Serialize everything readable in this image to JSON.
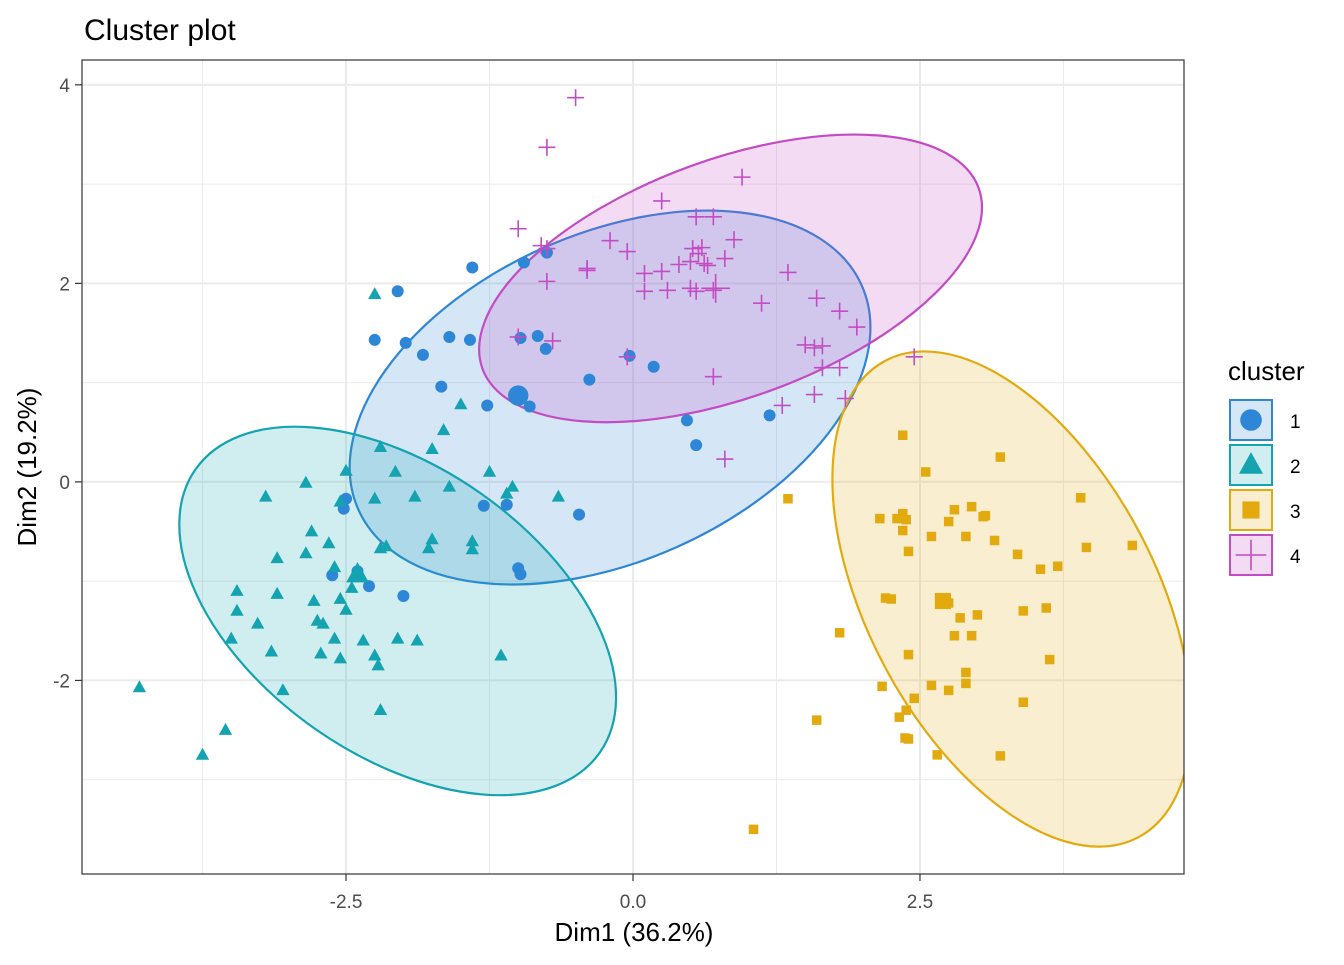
{
  "chart_data": {
    "type": "scatter",
    "title": "Cluster plot",
    "xlabel": "Dim1 (36.2%)",
    "ylabel": "Dim2 (19.2%)",
    "xlim": [
      -4.8,
      4.8
    ],
    "ylim": [
      -3.95,
      4.25
    ],
    "x_ticks": [
      -2.5,
      0.0,
      2.5
    ],
    "x_tick_labels": [
      "-2.5",
      "0.0",
      "2.5"
    ],
    "y_ticks": [
      -2,
      0,
      2,
      4
    ],
    "y_tick_labels": [
      "-2",
      "0",
      "2",
      "4"
    ],
    "grid": true,
    "legend": {
      "title": "cluster",
      "position": "right"
    },
    "series": [
      {
        "name": "1",
        "color": "#2e86d6",
        "shape": "circle",
        "centroid": [
          -1.0,
          0.87
        ],
        "ellipse": {
          "center": [
            -0.2,
            0.85
          ],
          "rx": 2.4,
          "ry": 1.65,
          "angle_deg": -24
        },
        "points": [
          [
            -1.4,
            2.16
          ],
          [
            -0.95,
            2.21
          ],
          [
            -0.75,
            2.31
          ],
          [
            -2.05,
            1.92
          ],
          [
            -2.25,
            1.43
          ],
          [
            -1.98,
            1.4
          ],
          [
            -1.83,
            1.28
          ],
          [
            -1.6,
            1.46
          ],
          [
            -1.42,
            1.43
          ],
          [
            -0.98,
            1.45
          ],
          [
            -0.83,
            1.47
          ],
          [
            -0.76,
            1.34
          ],
          [
            -0.03,
            1.27
          ],
          [
            0.18,
            1.16
          ],
          [
            -0.38,
            1.03
          ],
          [
            -1.67,
            0.96
          ],
          [
            -1.27,
            0.77
          ],
          [
            -0.9,
            0.76
          ],
          [
            0.47,
            0.62
          ],
          [
            0.55,
            0.37
          ],
          [
            1.19,
            0.67
          ],
          [
            -2.5,
            -0.17
          ],
          [
            -2.52,
            -0.27
          ],
          [
            -1.3,
            -0.24
          ],
          [
            -1.1,
            -0.23
          ],
          [
            -0.47,
            -0.33
          ],
          [
            -1.0,
            -0.87
          ],
          [
            -0.98,
            -0.93
          ],
          [
            -2.62,
            -0.94
          ],
          [
            -2.3,
            -1.05
          ],
          [
            -2.0,
            -1.15
          ],
          [
            -2.4,
            -0.9
          ]
        ]
      },
      {
        "name": "2",
        "color": "#14a3b0",
        "shape": "triangle",
        "centroid": [
          -2.4,
          -0.93
        ],
        "ellipse": {
          "center": [
            -2.05,
            -1.3
          ],
          "rx": 2.15,
          "ry": 1.45,
          "angle_deg": 35
        },
        "points": [
          [
            -2.25,
            1.89
          ],
          [
            -1.5,
            0.78
          ],
          [
            -1.65,
            0.52
          ],
          [
            -2.2,
            0.35
          ],
          [
            -1.75,
            0.33
          ],
          [
            -2.07,
            0.1
          ],
          [
            -2.5,
            0.11
          ],
          [
            -2.85,
            -0.01
          ],
          [
            -1.25,
            0.1
          ],
          [
            -1.6,
            -0.05
          ],
          [
            -1.1,
            -0.12
          ],
          [
            -1.05,
            -0.05
          ],
          [
            -0.65,
            -0.15
          ],
          [
            -1.9,
            -0.15
          ],
          [
            -2.25,
            -0.17
          ],
          [
            -2.55,
            -0.2
          ],
          [
            -3.2,
            -0.15
          ],
          [
            -2.8,
            -0.5
          ],
          [
            -2.65,
            -0.62
          ],
          [
            -2.15,
            -0.65
          ],
          [
            -2.2,
            -0.67
          ],
          [
            -1.75,
            -0.58
          ],
          [
            -1.78,
            -0.67
          ],
          [
            -1.4,
            -0.6
          ],
          [
            -1.4,
            -0.68
          ],
          [
            -3.1,
            -0.77
          ],
          [
            -2.85,
            -0.72
          ],
          [
            -2.6,
            -0.86
          ],
          [
            -2.45,
            -1.07
          ],
          [
            -2.55,
            -1.18
          ],
          [
            -2.5,
            -1.29
          ],
          [
            -2.78,
            -1.2
          ],
          [
            -3.45,
            -1.1
          ],
          [
            -3.45,
            -1.3
          ],
          [
            -3.1,
            -1.13
          ],
          [
            -3.5,
            -1.58
          ],
          [
            -3.27,
            -1.43
          ],
          [
            -2.7,
            -1.43
          ],
          [
            -2.75,
            -1.4
          ],
          [
            -2.6,
            -1.58
          ],
          [
            -2.35,
            -1.6
          ],
          [
            -2.05,
            -1.58
          ],
          [
            -1.88,
            -1.6
          ],
          [
            -3.15,
            -1.71
          ],
          [
            -2.72,
            -1.73
          ],
          [
            -2.55,
            -1.78
          ],
          [
            -2.25,
            -1.75
          ],
          [
            -2.22,
            -1.85
          ],
          [
            -1.15,
            -1.75
          ],
          [
            -3.05,
            -2.1
          ],
          [
            -4.3,
            -2.07
          ],
          [
            -2.2,
            -2.3
          ],
          [
            -3.55,
            -2.5
          ],
          [
            -3.75,
            -2.75
          ]
        ]
      },
      {
        "name": "3",
        "color": "#e3aa0f",
        "shape": "square",
        "centroid": [
          2.7,
          -1.2
        ],
        "ellipse": {
          "center": [
            3.3,
            -1.18
          ],
          "rx": 2.35,
          "ry": 1.45,
          "angle_deg": 62
        },
        "points": [
          [
            2.35,
            0.47
          ],
          [
            2.55,
            0.1
          ],
          [
            3.2,
            0.25
          ],
          [
            1.35,
            -0.17
          ],
          [
            2.15,
            -0.37
          ],
          [
            2.3,
            -0.37
          ],
          [
            2.35,
            -0.32
          ],
          [
            2.38,
            -0.38
          ],
          [
            2.35,
            -0.49
          ],
          [
            2.8,
            -0.28
          ],
          [
            2.95,
            -0.25
          ],
          [
            2.75,
            -0.4
          ],
          [
            2.6,
            -0.55
          ],
          [
            2.4,
            -0.7
          ],
          [
            2.9,
            -0.55
          ],
          [
            3.05,
            -0.35
          ],
          [
            3.07,
            -0.34
          ],
          [
            3.15,
            -0.59
          ],
          [
            3.35,
            -0.73
          ],
          [
            3.55,
            -0.88
          ],
          [
            3.7,
            -0.85
          ],
          [
            3.9,
            -0.16
          ],
          [
            3.95,
            -0.66
          ],
          [
            4.35,
            -0.64
          ],
          [
            2.2,
            -1.17
          ],
          [
            2.25,
            -1.18
          ],
          [
            2.7,
            -1.22
          ],
          [
            2.75,
            -1.22
          ],
          [
            2.85,
            -1.37
          ],
          [
            3.0,
            -1.34
          ],
          [
            3.4,
            -1.3
          ],
          [
            3.6,
            -1.27
          ],
          [
            1.8,
            -1.52
          ],
          [
            2.8,
            -1.55
          ],
          [
            2.95,
            -1.55
          ],
          [
            2.4,
            -1.74
          ],
          [
            3.63,
            -1.79
          ],
          [
            2.9,
            -1.92
          ],
          [
            2.9,
            -2.03
          ],
          [
            2.6,
            -2.05
          ],
          [
            2.75,
            -2.1
          ],
          [
            2.17,
            -2.06
          ],
          [
            2.45,
            -2.18
          ],
          [
            2.38,
            -2.3
          ],
          [
            2.32,
            -2.37
          ],
          [
            3.4,
            -2.22
          ],
          [
            1.6,
            -2.4
          ],
          [
            2.37,
            -2.58
          ],
          [
            2.4,
            -2.59
          ],
          [
            2.65,
            -2.75
          ],
          [
            3.2,
            -2.76
          ],
          [
            1.05,
            -3.5
          ]
        ]
      },
      {
        "name": "4",
        "color": "#c34bc3",
        "shape": "cross",
        "centroid": [
          0.72,
          1.95
        ],
        "ellipse": {
          "center": [
            0.85,
            2.05
          ],
          "rx": 2.3,
          "ry": 1.2,
          "angle_deg": -20
        },
        "points": [
          [
            -0.5,
            3.87
          ],
          [
            -0.75,
            3.37
          ],
          [
            0.95,
            3.07
          ],
          [
            0.25,
            2.83
          ],
          [
            0.55,
            2.67
          ],
          [
            0.7,
            2.67
          ],
          [
            -1.0,
            2.55
          ],
          [
            -0.8,
            2.38
          ],
          [
            -0.75,
            2.35
          ],
          [
            -0.2,
            2.43
          ],
          [
            -0.05,
            2.32
          ],
          [
            0.52,
            2.35
          ],
          [
            0.6,
            2.36
          ],
          [
            0.88,
            2.44
          ],
          [
            0.4,
            2.19
          ],
          [
            0.5,
            2.22
          ],
          [
            0.57,
            2.3
          ],
          [
            0.65,
            2.18
          ],
          [
            0.8,
            2.25
          ],
          [
            0.62,
            2.2
          ],
          [
            -0.4,
            2.13
          ],
          [
            -0.4,
            2.15
          ],
          [
            0.1,
            2.1
          ],
          [
            0.25,
            2.12
          ],
          [
            1.35,
            2.11
          ],
          [
            -0.75,
            2.02
          ],
          [
            0.1,
            1.92
          ],
          [
            0.3,
            1.93
          ],
          [
            0.5,
            1.95
          ],
          [
            0.55,
            1.92
          ],
          [
            0.7,
            1.93
          ],
          [
            1.12,
            1.8
          ],
          [
            1.6,
            1.85
          ],
          [
            1.8,
            1.72
          ],
          [
            1.95,
            1.56
          ],
          [
            -1.0,
            1.46
          ],
          [
            -0.7,
            1.42
          ],
          [
            1.5,
            1.38
          ],
          [
            1.58,
            1.35
          ],
          [
            1.65,
            1.37
          ],
          [
            -0.05,
            1.26
          ],
          [
            2.45,
            1.26
          ],
          [
            1.65,
            1.15
          ],
          [
            1.8,
            1.15
          ],
          [
            0.7,
            1.06
          ],
          [
            1.58,
            0.88
          ],
          [
            1.85,
            0.84
          ],
          [
            1.3,
            0.77
          ],
          [
            0.8,
            0.23
          ]
        ]
      }
    ]
  }
}
